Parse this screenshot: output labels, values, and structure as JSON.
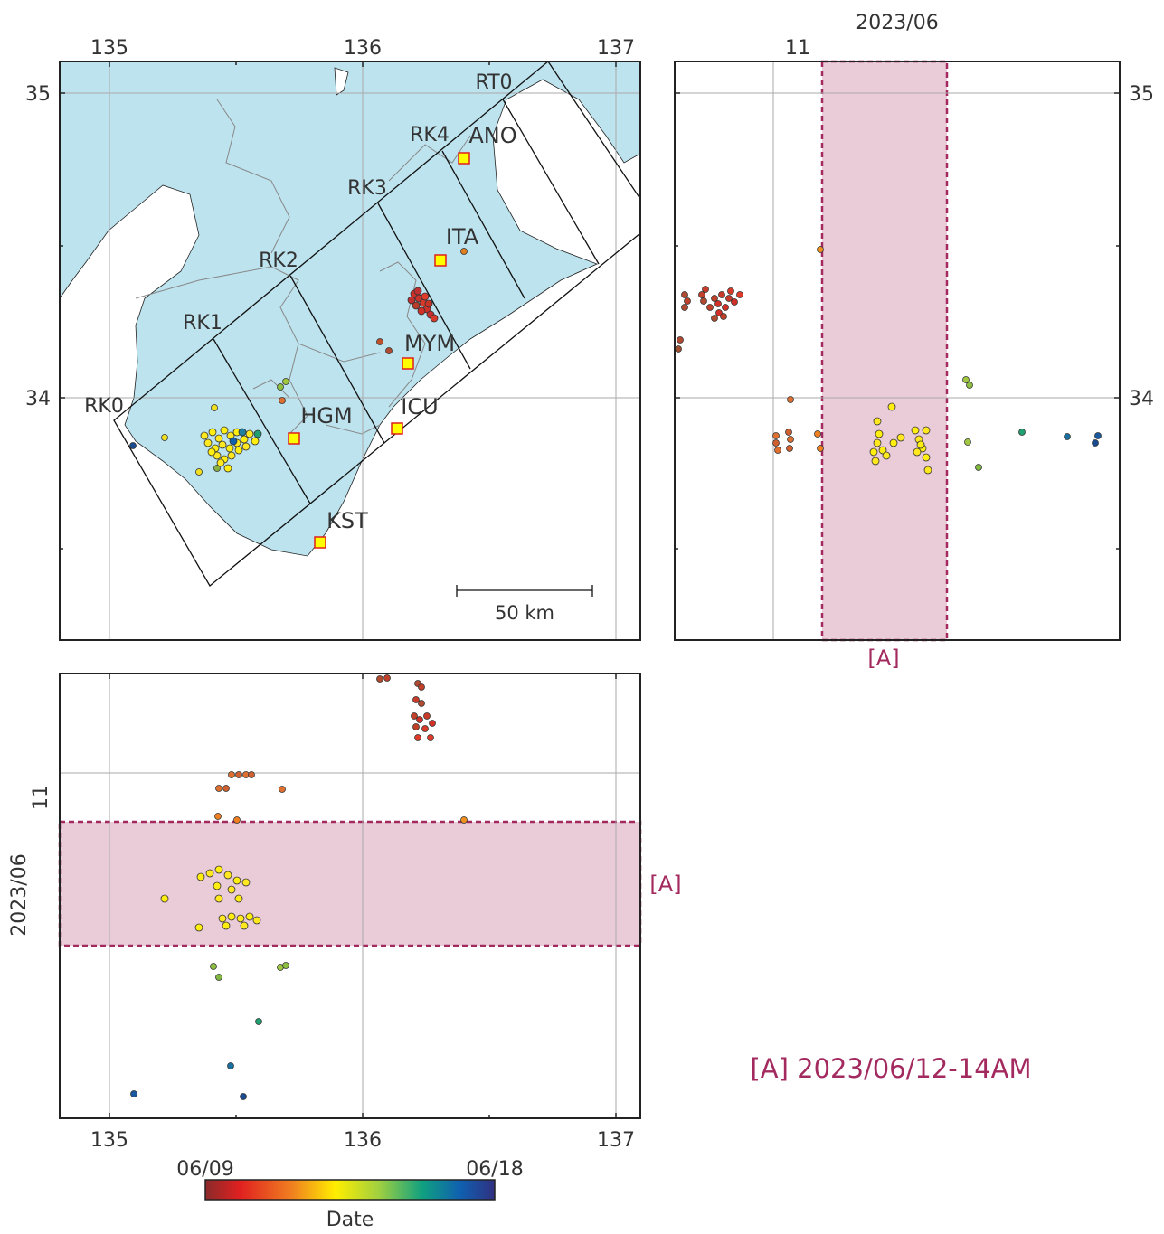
{
  "map": {
    "lon_ticks": [
      "135",
      "136",
      "137"
    ],
    "lat_ticks": [
      "34",
      "35"
    ],
    "regions": [
      "RT0",
      "RK4",
      "RK3",
      "RK2",
      "RK1",
      "RK0"
    ],
    "stations": [
      "ANO",
      "ITA",
      "MYM",
      "HGM",
      "ICU",
      "KST"
    ],
    "scale_bar": "50 km",
    "colors": {
      "land": "#bde3ee",
      "station_fill": "#ffff00",
      "station_edge": "#e0201a"
    }
  },
  "time_lon_panel": {
    "lat_ticks": [
      "34",
      "35"
    ],
    "time_tick": "11",
    "time_label": "2023/06",
    "window_label": "[A]",
    "colors": {
      "window_fill": "#eaccd8",
      "window_edge": "#a32a5f"
    }
  },
  "time_lat_panel": {
    "lon_ticks": [
      "135",
      "136",
      "137"
    ],
    "time_tick": "11",
    "time_label": "2023/06",
    "window_label": "[A]"
  },
  "colorbar": {
    "start_label": "06/09",
    "end_label": "06/18",
    "title": "Date",
    "stops": [
      "#8b2a2a",
      "#e02020",
      "#f08020",
      "#ffee00",
      "#a0d040",
      "#10a080",
      "#1060b0",
      "#303080"
    ]
  },
  "legend": {
    "window_note": "[A] 2023/06/12-14AM"
  }
}
